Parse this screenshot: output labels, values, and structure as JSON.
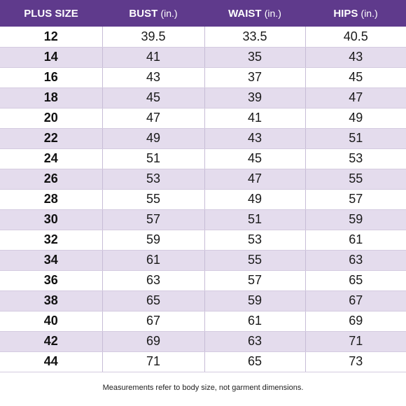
{
  "header": {
    "col_size": "PLUS SIZE",
    "col_bust": "BUST",
    "col_waist": "WAIST",
    "col_hips": "HIPS",
    "unit": "(in.)"
  },
  "rows": [
    {
      "size": "12",
      "bust": "39.5",
      "waist": "33.5",
      "hips": "40.5"
    },
    {
      "size": "14",
      "bust": "41",
      "waist": "35",
      "hips": "43"
    },
    {
      "size": "16",
      "bust": "43",
      "waist": "37",
      "hips": "45"
    },
    {
      "size": "18",
      "bust": "45",
      "waist": "39",
      "hips": "47"
    },
    {
      "size": "20",
      "bust": "47",
      "waist": "41",
      "hips": "49"
    },
    {
      "size": "22",
      "bust": "49",
      "waist": "43",
      "hips": "51"
    },
    {
      "size": "24",
      "bust": "51",
      "waist": "45",
      "hips": "53"
    },
    {
      "size": "26",
      "bust": "53",
      "waist": "47",
      "hips": "55"
    },
    {
      "size": "28",
      "bust": "55",
      "waist": "49",
      "hips": "57"
    },
    {
      "size": "30",
      "bust": "57",
      "waist": "51",
      "hips": "59"
    },
    {
      "size": "32",
      "bust": "59",
      "waist": "53",
      "hips": "61"
    },
    {
      "size": "34",
      "bust": "61",
      "waist": "55",
      "hips": "63"
    },
    {
      "size": "36",
      "bust": "63",
      "waist": "57",
      "hips": "65"
    },
    {
      "size": "38",
      "bust": "65",
      "waist": "59",
      "hips": "67"
    },
    {
      "size": "40",
      "bust": "67",
      "waist": "61",
      "hips": "69"
    },
    {
      "size": "42",
      "bust": "69",
      "waist": "63",
      "hips": "71"
    },
    {
      "size": "44",
      "bust": "71",
      "waist": "65",
      "hips": "73"
    }
  ],
  "footnote": "Measurements refer to body size, not garment dimensions.",
  "colors": {
    "header_bg": "#5f3a8c",
    "stripe": "#e4dced"
  }
}
